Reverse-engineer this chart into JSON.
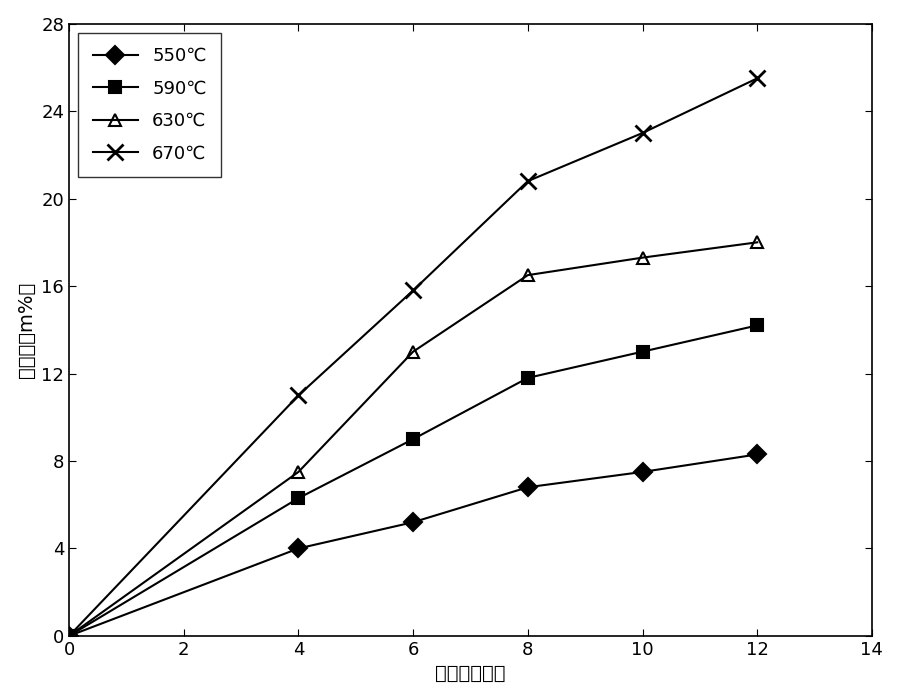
{
  "series": [
    {
      "label": "550℃",
      "x": [
        0,
        4,
        6,
        8,
        10,
        12
      ],
      "y": [
        0,
        4.0,
        5.2,
        6.8,
        7.5,
        8.3
      ],
      "marker": "D",
      "fillstyle": "full"
    },
    {
      "label": "590℃",
      "x": [
        0,
        4,
        6,
        8,
        10,
        12
      ],
      "y": [
        0,
        6.3,
        9.0,
        11.8,
        13.0,
        14.2
      ],
      "marker": "s",
      "fillstyle": "full"
    },
    {
      "label": "630℃",
      "x": [
        0,
        4,
        6,
        8,
        10,
        12
      ],
      "y": [
        0,
        7.5,
        13.0,
        16.5,
        17.3,
        18.0
      ],
      "marker": "^",
      "fillstyle": "none"
    },
    {
      "label": "670℃",
      "x": [
        0,
        4,
        6,
        8,
        10,
        12
      ],
      "y": [
        0,
        11.0,
        15.8,
        20.8,
        23.0,
        25.5
      ],
      "marker": "x",
      "fillstyle": "full"
    }
  ],
  "xlabel": "时间（小时）",
  "ylabel": "含炳量（m%）",
  "xlim": [
    0,
    14
  ],
  "ylim": [
    0,
    28
  ],
  "xticks": [
    0,
    2,
    4,
    6,
    8,
    10,
    12,
    14
  ],
  "yticks": [
    0,
    4,
    8,
    12,
    16,
    20,
    24,
    28
  ],
  "legend_loc": "upper left",
  "background_color": "#ffffff",
  "marker_size": 9,
  "linewidth": 1.5,
  "label_fontsize": 14,
  "tick_fontsize": 13,
  "legend_fontsize": 13
}
